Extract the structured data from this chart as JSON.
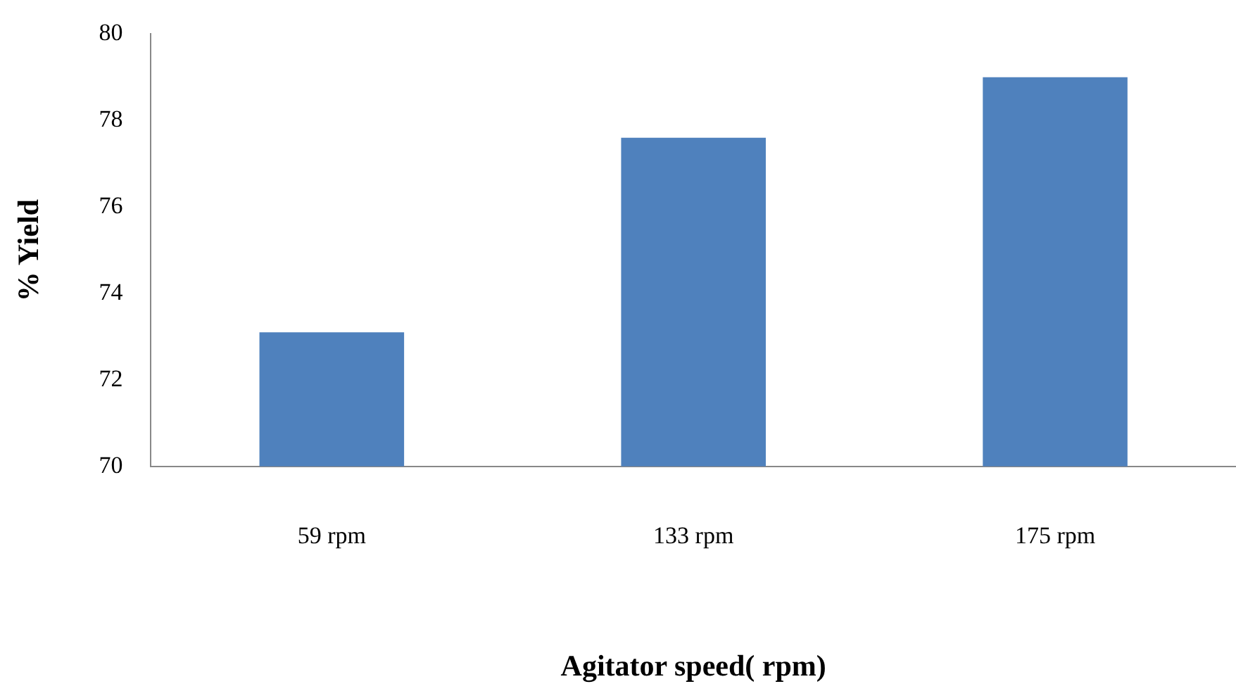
{
  "chart_data": {
    "type": "bar",
    "xlabel": "Agitator speed( rpm)",
    "ylabel": "% Yield",
    "categories": [
      "59 rpm",
      "133 rpm",
      "175 rpm"
    ],
    "values": [
      73.1,
      77.6,
      79.0
    ],
    "color": "#4f81bd",
    "ylim": [
      70,
      80
    ],
    "yticks": [
      70,
      72,
      74,
      76,
      78,
      80
    ],
    "grid": false,
    "legend": false
  }
}
